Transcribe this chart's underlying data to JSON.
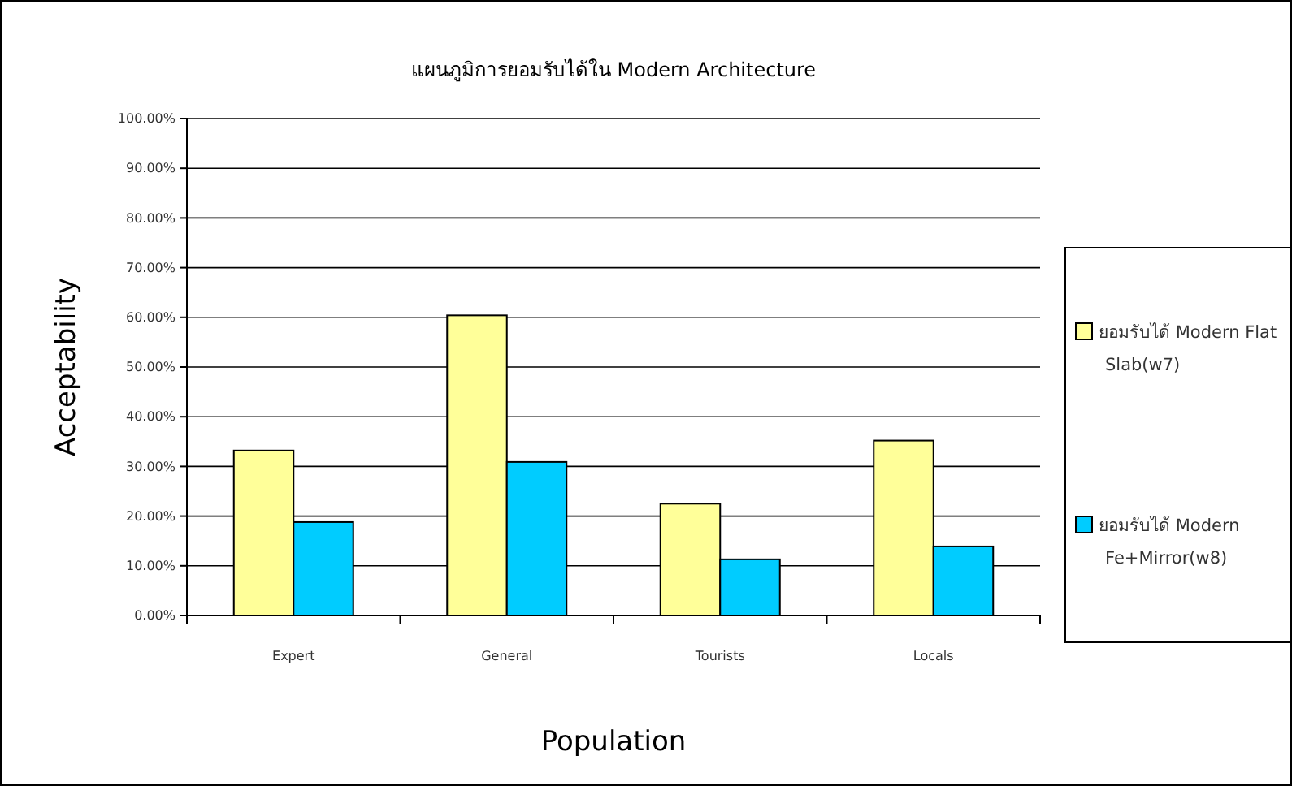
{
  "chart_data": {
    "type": "bar",
    "title": "แผนภูมิการยอมรับได้ใน Modern Architecture",
    "xlabel": "Population",
    "ylabel": "Acceptability",
    "categories": [
      "Expert",
      "General",
      "Tourists",
      "Locals"
    ],
    "series": [
      {
        "name": "ยอมรับได้ Modern Flat Slab(w7)",
        "color": "#ffff99",
        "values": [
          33.2,
          60.4,
          22.5,
          35.2
        ]
      },
      {
        "name": "ยอมรับได้ Modern Fe+Mirror(w8)",
        "color": "#00ccff",
        "values": [
          18.8,
          30.9,
          11.3,
          13.9
        ]
      }
    ],
    "ylim": [
      0,
      100
    ],
    "yticks": [
      {
        "value": 0,
        "label": "0.00%"
      },
      {
        "value": 10,
        "label": "10.00%"
      },
      {
        "value": 20,
        "label": "20.00%"
      },
      {
        "value": 30,
        "label": "30.00%"
      },
      {
        "value": 40,
        "label": "40.00%"
      },
      {
        "value": 50,
        "label": "50.00%"
      },
      {
        "value": 60,
        "label": "60.00%"
      },
      {
        "value": 70,
        "label": "70.00%"
      },
      {
        "value": 80,
        "label": "80.00%"
      },
      {
        "value": 90,
        "label": "90.00%"
      },
      {
        "value": 100,
        "label": "100.00%"
      }
    ],
    "grid": "y",
    "legend": "right"
  }
}
